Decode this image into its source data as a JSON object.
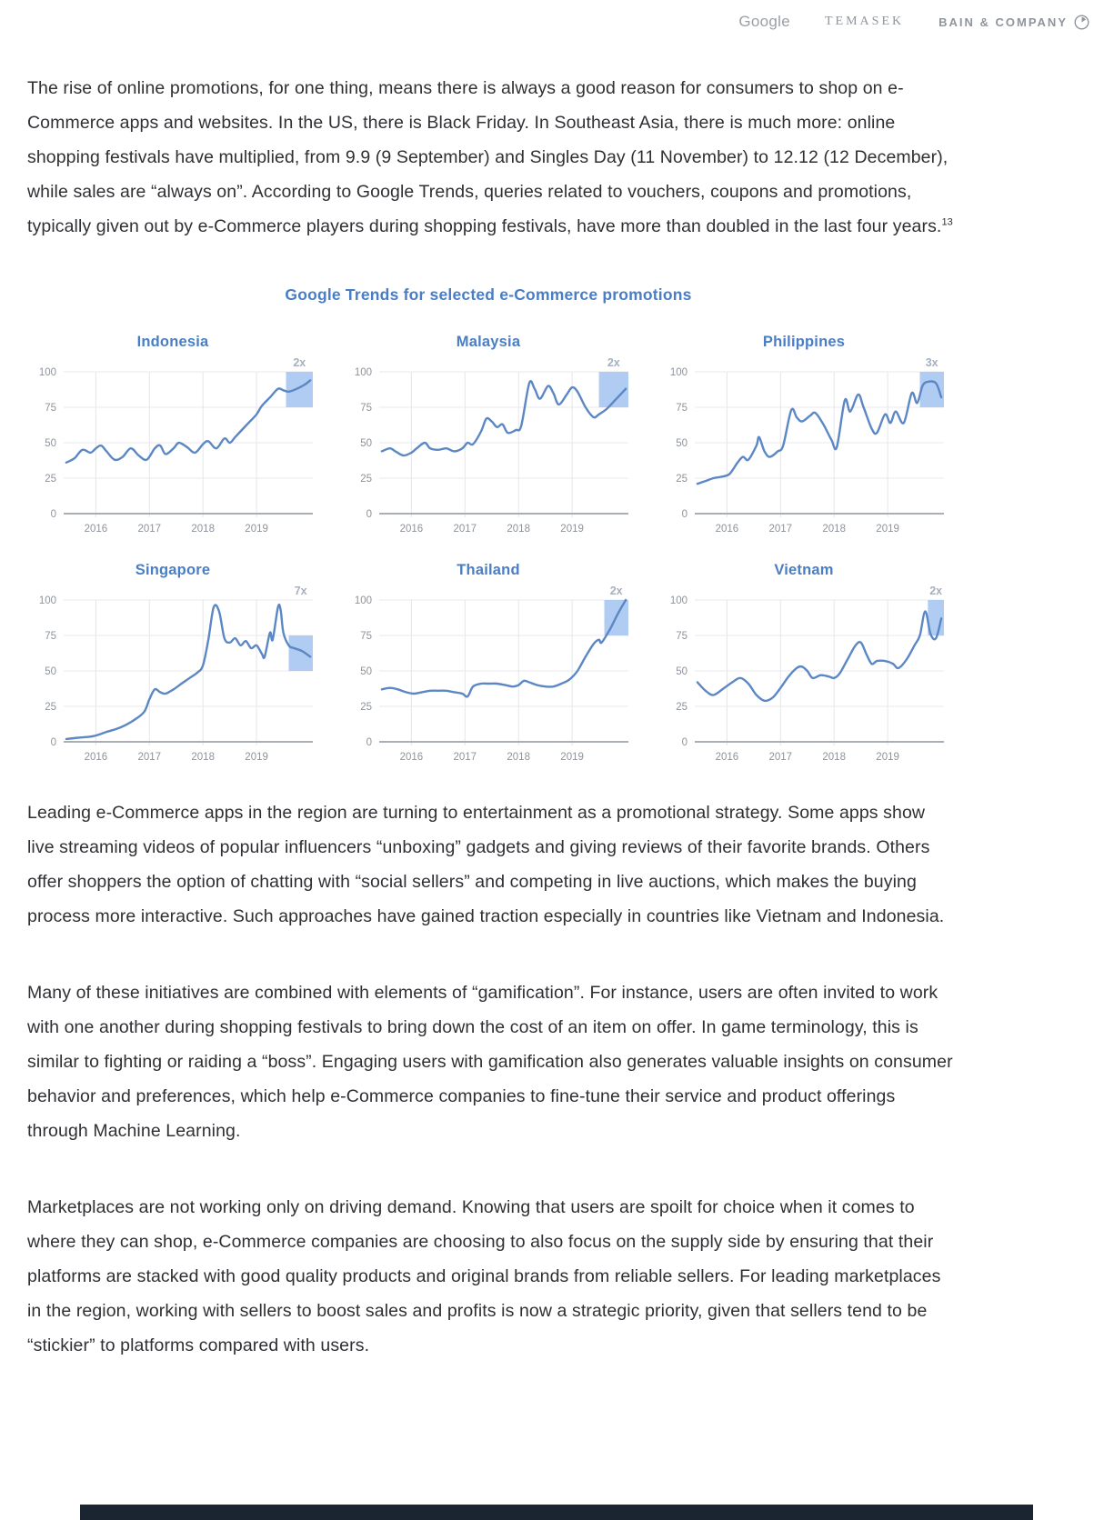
{
  "page": {
    "header": {
      "logo_google": "Google",
      "logo_temasek": "TEMASEK",
      "logo_bain": "BAIN & COMPANY"
    },
    "paragraphs": [
      {
        "text": "The rise of online promotions, for one thing, means there is always a good reason for consumers to shop on e-Commerce apps and websites. In the US, there is Black Friday. In Southeast Asia, there is much more: online shopping festivals have multiplied, from 9.9 (9 September) and Singles Day (11 November) to 12.12 (12 December), while sales are “always on”. According to Google Trends, queries related to vouchers, coupons and promotions, typically given out by e-Commerce players during shopping festivals, have more than doubled in the last four years.",
        "footnote": "13"
      },
      {
        "text": "Leading e-Commerce apps in the region are turning to entertainment as a promotional strategy. Some apps show live streaming videos of popular influencers “unboxing” gadgets and giving reviews of their favorite brands. Others offer shoppers the option of chatting with “social sellers” and competing in live auctions, which makes the buying process more interactive. Such approaches have gained traction especially in countries like Vietnam and Indonesia."
      },
      {
        "text": "Many of these initiatives are combined with elements of “gamification”. For instance, users are often invited to work with one another during shopping festivals to bring down the cost of an item on offer. In game terminology, this is similar to fighting or raiding a “boss”. Engaging users with gamification also generates valuable insights on consumer behavior and preferences, which help e-Commerce companies to fine-tune their service and product offerings through Machine Learning."
      },
      {
        "text": "Marketplaces are not working only on driving demand. Knowing that users are spoilt for choice when it comes to where they can shop, e-Commerce companies are choosing to also focus on the supply side by ensuring that their platforms are stacked with good quality products and original brands from reliable sellers. For leading marketplaces in the region, working with sellers to boost sales and profits is now a strategic priority, given that sellers tend to be “stickier” to platforms compared with users."
      }
    ]
  },
  "chart_section": {
    "title": "Google Trends for selected e-Commerce promotions"
  },
  "colors": {
    "accent_blue": "#4a7ec4",
    "line_blue": "#5b87c5",
    "highlight_blue": "#a9c6f2",
    "footer_bar": "#1b2431"
  },
  "chart_data": [
    {
      "type": "line",
      "title": "Indonesia",
      "multiplier_label": "2x",
      "x_ticks": [
        "2016",
        "2017",
        "2018",
        "2019"
      ],
      "y_ticks": [
        100,
        75,
        50,
        25,
        0
      ],
      "xlim": [
        2015.4,
        2020.05
      ],
      "ylim": [
        0,
        100
      ],
      "grid": true,
      "highlight_band": {
        "x0": 2019.55,
        "x1": 2020.05,
        "y0": 75,
        "y1": 100
      },
      "points": [
        [
          2015.45,
          36
        ],
        [
          2015.6,
          39
        ],
        [
          2015.75,
          45
        ],
        [
          2015.9,
          43
        ],
        [
          2016.0,
          46
        ],
        [
          2016.1,
          48
        ],
        [
          2016.2,
          44
        ],
        [
          2016.35,
          38
        ],
        [
          2016.5,
          40
        ],
        [
          2016.65,
          46
        ],
        [
          2016.8,
          41
        ],
        [
          2016.95,
          38
        ],
        [
          2017.1,
          46
        ],
        [
          2017.2,
          48
        ],
        [
          2017.3,
          42
        ],
        [
          2017.45,
          46
        ],
        [
          2017.55,
          50
        ],
        [
          2017.7,
          47
        ],
        [
          2017.85,
          43
        ],
        [
          2018.0,
          49
        ],
        [
          2018.1,
          51
        ],
        [
          2018.25,
          46
        ],
        [
          2018.4,
          53
        ],
        [
          2018.5,
          50
        ],
        [
          2018.6,
          54
        ],
        [
          2018.7,
          58
        ],
        [
          2018.85,
          64
        ],
        [
          2019.0,
          70
        ],
        [
          2019.1,
          76
        ],
        [
          2019.25,
          82
        ],
        [
          2019.4,
          88
        ],
        [
          2019.5,
          87
        ],
        [
          2019.6,
          86
        ],
        [
          2019.75,
          88
        ],
        [
          2019.9,
          91
        ],
        [
          2020.0,
          94
        ]
      ]
    },
    {
      "type": "line",
      "title": "Malaysia",
      "multiplier_label": "2x",
      "x_ticks": [
        "2016",
        "2017",
        "2018",
        "2019"
      ],
      "y_ticks": [
        100,
        75,
        50,
        25,
        0
      ],
      "xlim": [
        2015.4,
        2020.05
      ],
      "ylim": [
        0,
        100
      ],
      "grid": true,
      "highlight_band": {
        "x0": 2019.5,
        "x1": 2020.05,
        "y0": 75,
        "y1": 100
      },
      "points": [
        [
          2015.45,
          44
        ],
        [
          2015.6,
          46
        ],
        [
          2015.7,
          44
        ],
        [
          2015.85,
          41
        ],
        [
          2016.0,
          43
        ],
        [
          2016.1,
          46
        ],
        [
          2016.25,
          50
        ],
        [
          2016.35,
          46
        ],
        [
          2016.5,
          45
        ],
        [
          2016.65,
          46
        ],
        [
          2016.8,
          44
        ],
        [
          2016.95,
          46
        ],
        [
          2017.05,
          50
        ],
        [
          2017.15,
          49
        ],
        [
          2017.3,
          58
        ],
        [
          2017.4,
          67
        ],
        [
          2017.5,
          65
        ],
        [
          2017.6,
          61
        ],
        [
          2017.7,
          63
        ],
        [
          2017.8,
          57
        ],
        [
          2017.95,
          59
        ],
        [
          2018.05,
          62
        ],
        [
          2018.2,
          92
        ],
        [
          2018.3,
          88
        ],
        [
          2018.4,
          81
        ],
        [
          2018.55,
          90
        ],
        [
          2018.65,
          85
        ],
        [
          2018.75,
          77
        ],
        [
          2018.9,
          84
        ],
        [
          2019.0,
          89
        ],
        [
          2019.1,
          86
        ],
        [
          2019.25,
          75
        ],
        [
          2019.4,
          68
        ],
        [
          2019.5,
          70
        ],
        [
          2019.65,
          74
        ],
        [
          2019.8,
          80
        ],
        [
          2020.0,
          88
        ]
      ]
    },
    {
      "type": "line",
      "title": "Philippines",
      "multiplier_label": "3x",
      "x_ticks": [
        "2016",
        "2017",
        "2018",
        "2019"
      ],
      "y_ticks": [
        100,
        75,
        50,
        25,
        0
      ],
      "xlim": [
        2015.4,
        2020.05
      ],
      "ylim": [
        0,
        100
      ],
      "grid": true,
      "highlight_band": {
        "x0": 2019.6,
        "x1": 2020.05,
        "y0": 75,
        "y1": 100
      },
      "points": [
        [
          2015.45,
          21
        ],
        [
          2015.6,
          23
        ],
        [
          2015.75,
          25
        ],
        [
          2015.9,
          26
        ],
        [
          2016.05,
          28
        ],
        [
          2016.2,
          36
        ],
        [
          2016.3,
          40
        ],
        [
          2016.4,
          38
        ],
        [
          2016.55,
          48
        ],
        [
          2016.6,
          54
        ],
        [
          2016.7,
          44
        ],
        [
          2016.8,
          40
        ],
        [
          2016.95,
          44
        ],
        [
          2017.05,
          48
        ],
        [
          2017.2,
          73
        ],
        [
          2017.3,
          68
        ],
        [
          2017.4,
          65
        ],
        [
          2017.55,
          69
        ],
        [
          2017.65,
          71
        ],
        [
          2017.8,
          63
        ],
        [
          2017.95,
          52
        ],
        [
          2018.05,
          47
        ],
        [
          2018.2,
          80
        ],
        [
          2018.3,
          72
        ],
        [
          2018.45,
          84
        ],
        [
          2018.55,
          75
        ],
        [
          2018.7,
          60
        ],
        [
          2018.8,
          57
        ],
        [
          2018.95,
          70
        ],
        [
          2019.05,
          64
        ],
        [
          2019.15,
          72
        ],
        [
          2019.3,
          64
        ],
        [
          2019.45,
          85
        ],
        [
          2019.55,
          78
        ],
        [
          2019.65,
          90
        ],
        [
          2019.75,
          93
        ],
        [
          2019.9,
          92
        ],
        [
          2020.0,
          82
        ]
      ]
    },
    {
      "type": "line",
      "title": "Singapore",
      "multiplier_label": "7x",
      "x_ticks": [
        "2016",
        "2017",
        "2018",
        "2019"
      ],
      "y_ticks": [
        100,
        75,
        50,
        25,
        0
      ],
      "xlim": [
        2015.4,
        2020.05
      ],
      "ylim": [
        0,
        100
      ],
      "grid": true,
      "highlight_band": {
        "x0": 2019.6,
        "x1": 2020.05,
        "y0": 50,
        "y1": 75
      },
      "points": [
        [
          2015.45,
          2
        ],
        [
          2015.7,
          3
        ],
        [
          2015.95,
          4
        ],
        [
          2016.2,
          7
        ],
        [
          2016.45,
          10
        ],
        [
          2016.7,
          15
        ],
        [
          2016.9,
          21
        ],
        [
          2017.0,
          30
        ],
        [
          2017.1,
          37
        ],
        [
          2017.2,
          35
        ],
        [
          2017.3,
          34
        ],
        [
          2017.45,
          37
        ],
        [
          2017.6,
          41
        ],
        [
          2017.75,
          45
        ],
        [
          2017.9,
          49
        ],
        [
          2018.0,
          54
        ],
        [
          2018.1,
          72
        ],
        [
          2018.2,
          95
        ],
        [
          2018.3,
          92
        ],
        [
          2018.4,
          73
        ],
        [
          2018.5,
          70
        ],
        [
          2018.6,
          73
        ],
        [
          2018.7,
          68
        ],
        [
          2018.8,
          71
        ],
        [
          2018.9,
          66
        ],
        [
          2019.0,
          68
        ],
        [
          2019.1,
          62
        ],
        [
          2019.15,
          60
        ],
        [
          2019.25,
          77
        ],
        [
          2019.3,
          72
        ],
        [
          2019.4,
          95
        ],
        [
          2019.45,
          93
        ],
        [
          2019.5,
          77
        ],
        [
          2019.6,
          68
        ],
        [
          2019.7,
          66
        ],
        [
          2019.85,
          64
        ],
        [
          2020.0,
          60
        ]
      ]
    },
    {
      "type": "line",
      "title": "Thailand",
      "multiplier_label": "2x",
      "x_ticks": [
        "2016",
        "2017",
        "2018",
        "2019"
      ],
      "y_ticks": [
        100,
        75,
        50,
        25,
        0
      ],
      "xlim": [
        2015.4,
        2020.05
      ],
      "ylim": [
        0,
        100
      ],
      "grid": true,
      "highlight_band": {
        "x0": 2019.6,
        "x1": 2020.05,
        "y0": 75,
        "y1": 100
      },
      "points": [
        [
          2015.45,
          37
        ],
        [
          2015.6,
          38
        ],
        [
          2015.75,
          37
        ],
        [
          2015.9,
          35
        ],
        [
          2016.05,
          34
        ],
        [
          2016.2,
          35
        ],
        [
          2016.35,
          36
        ],
        [
          2016.5,
          36
        ],
        [
          2016.65,
          36
        ],
        [
          2016.8,
          35
        ],
        [
          2016.95,
          34
        ],
        [
          2017.05,
          32
        ],
        [
          2017.15,
          39
        ],
        [
          2017.3,
          41
        ],
        [
          2017.45,
          41
        ],
        [
          2017.6,
          41
        ],
        [
          2017.75,
          40
        ],
        [
          2017.9,
          39
        ],
        [
          2018.0,
          40
        ],
        [
          2018.1,
          43
        ],
        [
          2018.2,
          42
        ],
        [
          2018.35,
          40
        ],
        [
          2018.5,
          39
        ],
        [
          2018.65,
          39
        ],
        [
          2018.8,
          41
        ],
        [
          2018.95,
          44
        ],
        [
          2019.1,
          50
        ],
        [
          2019.25,
          60
        ],
        [
          2019.4,
          69
        ],
        [
          2019.5,
          72
        ],
        [
          2019.55,
          70
        ],
        [
          2019.7,
          79
        ],
        [
          2019.85,
          90
        ],
        [
          2020.0,
          100
        ]
      ]
    },
    {
      "type": "line",
      "title": "Vietnam",
      "multiplier_label": "2x",
      "x_ticks": [
        "2016",
        "2017",
        "2018",
        "2019"
      ],
      "y_ticks": [
        100,
        75,
        50,
        25,
        0
      ],
      "xlim": [
        2015.4,
        2020.05
      ],
      "ylim": [
        0,
        100
      ],
      "grid": true,
      "highlight_band": {
        "x0": 2019.75,
        "x1": 2020.05,
        "y0": 75,
        "y1": 100
      },
      "points": [
        [
          2015.45,
          42
        ],
        [
          2015.6,
          36
        ],
        [
          2015.75,
          33
        ],
        [
          2015.95,
          38
        ],
        [
          2016.1,
          42
        ],
        [
          2016.25,
          45
        ],
        [
          2016.4,
          41
        ],
        [
          2016.55,
          33
        ],
        [
          2016.7,
          29
        ],
        [
          2016.85,
          31
        ],
        [
          2017.0,
          38
        ],
        [
          2017.15,
          46
        ],
        [
          2017.3,
          52
        ],
        [
          2017.4,
          53
        ],
        [
          2017.5,
          50
        ],
        [
          2017.6,
          45
        ],
        [
          2017.75,
          47
        ],
        [
          2017.9,
          46
        ],
        [
          2018.0,
          45
        ],
        [
          2018.1,
          48
        ],
        [
          2018.25,
          58
        ],
        [
          2018.4,
          68
        ],
        [
          2018.5,
          70
        ],
        [
          2018.6,
          62
        ],
        [
          2018.7,
          55
        ],
        [
          2018.8,
          57
        ],
        [
          2018.95,
          57
        ],
        [
          2019.1,
          55
        ],
        [
          2019.2,
          52
        ],
        [
          2019.35,
          58
        ],
        [
          2019.5,
          68
        ],
        [
          2019.6,
          75
        ],
        [
          2019.7,
          92
        ],
        [
          2019.8,
          76
        ],
        [
          2019.9,
          73
        ],
        [
          2020.0,
          87
        ]
      ]
    }
  ]
}
